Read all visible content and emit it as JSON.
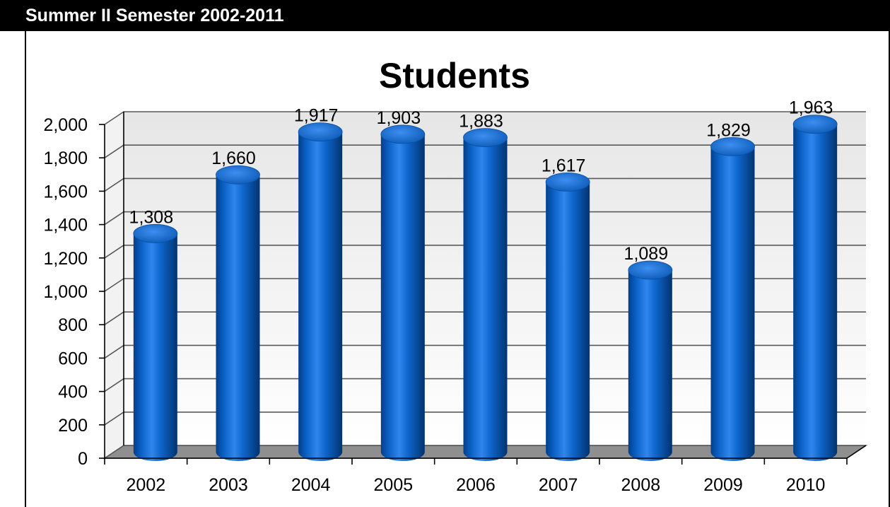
{
  "header": {
    "title": "Summer II Semester 2002-2011"
  },
  "chart_data": {
    "type": "bar",
    "title": "Students",
    "xlabel": "",
    "ylabel": "",
    "categories": [
      "2002",
      "2003",
      "2004",
      "2005",
      "2006",
      "2007",
      "2008",
      "2009",
      "2010"
    ],
    "values": [
      1308,
      1660,
      1917,
      1903,
      1883,
      1617,
      1089,
      1829,
      1963
    ],
    "data_labels": [
      "1,308",
      "1,660",
      "1,917",
      "1,903",
      "1,883",
      "1,617",
      "1,089",
      "1,829",
      "1,963"
    ],
    "ylim": [
      0,
      2000
    ],
    "yticks": [
      0,
      200,
      400,
      600,
      800,
      1000,
      1200,
      1400,
      1600,
      1800,
      2000
    ],
    "ytick_labels": [
      "0",
      "200",
      "400",
      "600",
      "800",
      "1,000",
      "1,200",
      "1,400",
      "1,600",
      "1,800",
      "2,000"
    ],
    "grid": true,
    "style": "3d-cylinder",
    "colors": {
      "bar": "#0a5fc0",
      "bar_light": "#5aa3ff",
      "bar_dark": "#023a80",
      "floor": "#8f8f8f",
      "wall_top": "#e9e9e9",
      "wall_bottom": "#ffffff"
    }
  }
}
